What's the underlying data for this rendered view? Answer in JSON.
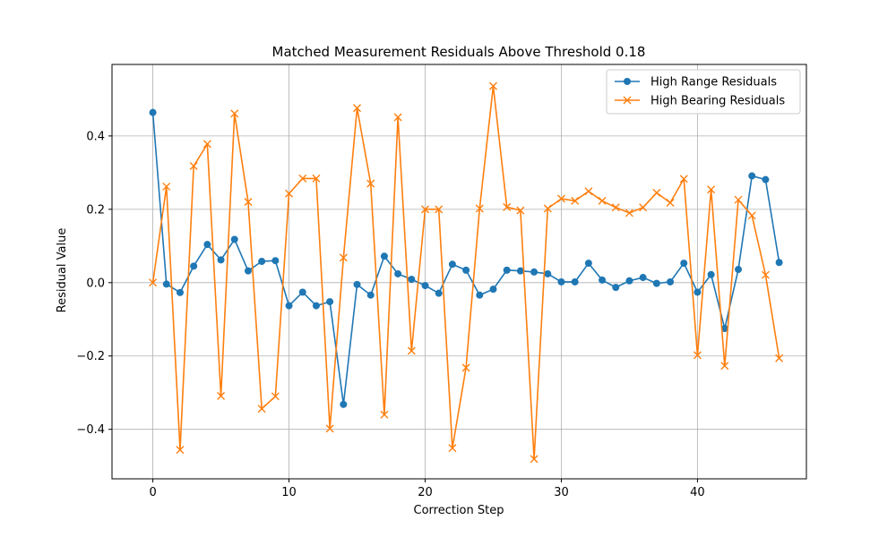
{
  "chart_data": {
    "type": "line",
    "title": "Matched Measurement Residuals Above Threshold 0.18",
    "xlabel": "Correction Step",
    "ylabel": "Residual Value",
    "xlim": [
      -3,
      48
    ],
    "ylim": [
      -0.535,
      0.595
    ],
    "xticks": [
      0,
      10,
      20,
      30,
      40
    ],
    "yticks": [
      -0.4,
      -0.2,
      0.0,
      0.2,
      0.4
    ],
    "ytick_labels": [
      "−0.4",
      "−0.2",
      "0.0",
      "0.2",
      "0.4"
    ],
    "grid": true,
    "legend_position": "top-right",
    "series": [
      {
        "name": "High Range Residuals",
        "color": "#1f77b4",
        "marker": "circle",
        "x": [
          0,
          1,
          2,
          3,
          4,
          5,
          6,
          7,
          8,
          9,
          10,
          11,
          12,
          13,
          14,
          15,
          16,
          17,
          18,
          19,
          20,
          21,
          22,
          23,
          24,
          25,
          26,
          27,
          28,
          29,
          30,
          31,
          32,
          33,
          34,
          35,
          36,
          37,
          38,
          39,
          40,
          41,
          42,
          43,
          44,
          45,
          46
        ],
        "values": [
          0.464,
          -0.004,
          -0.027,
          0.045,
          0.104,
          0.062,
          0.118,
          0.032,
          0.058,
          0.06,
          -0.063,
          -0.026,
          -0.063,
          -0.052,
          -0.332,
          -0.005,
          -0.034,
          0.072,
          0.024,
          0.009,
          -0.008,
          -0.029,
          0.05,
          0.034,
          -0.034,
          -0.018,
          0.034,
          0.032,
          0.029,
          0.024,
          0.002,
          0.002,
          0.053,
          0.007,
          -0.013,
          0.005,
          0.014,
          -0.002,
          0.002,
          0.053,
          -0.026,
          0.022,
          -0.125,
          0.036,
          0.291,
          0.281,
          0.055
        ]
      },
      {
        "name": "High Bearing Residuals",
        "color": "#ff7f0e",
        "marker": "x",
        "x": [
          0,
          1,
          2,
          3,
          4,
          5,
          6,
          7,
          8,
          9,
          10,
          11,
          12,
          13,
          14,
          15,
          16,
          17,
          18,
          19,
          20,
          21,
          22,
          23,
          24,
          25,
          26,
          27,
          28,
          29,
          30,
          31,
          32,
          33,
          34,
          35,
          36,
          37,
          38,
          39,
          40,
          41,
          42,
          43,
          44,
          45,
          46
        ],
        "values": [
          0.0,
          0.262,
          -0.456,
          0.318,
          0.378,
          -0.309,
          0.461,
          0.22,
          -0.344,
          -0.31,
          0.243,
          0.284,
          0.284,
          -0.398,
          0.068,
          0.476,
          0.27,
          -0.36,
          0.451,
          -0.186,
          0.2,
          0.2,
          -0.451,
          -0.232,
          0.202,
          0.536,
          0.206,
          0.197,
          -0.481,
          0.202,
          0.229,
          0.223,
          0.249,
          0.223,
          0.205,
          0.19,
          0.205,
          0.245,
          0.218,
          0.283,
          -0.198,
          0.254,
          -0.227,
          0.226,
          0.183,
          0.021,
          -0.206
        ]
      }
    ]
  }
}
